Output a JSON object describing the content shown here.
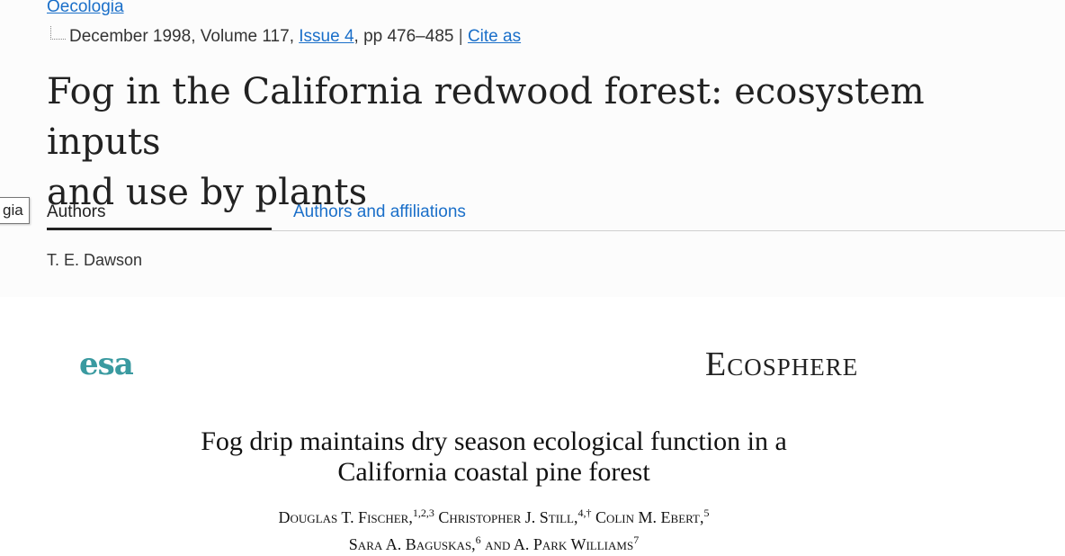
{
  "springer": {
    "journal": "Oecologia",
    "meta": {
      "date_volume": "December 1998, Volume 117, ",
      "issue_link": "Issue 4",
      "pages": ", pp 476–485 ",
      "separator": "|",
      "cite_link": "Cite as"
    },
    "title_line1": "Fog in the California redwood forest: ecosystem inputs",
    "title_line2": "and use by plants",
    "tooltip": "gia",
    "tabs": {
      "authors": "Authors",
      "affiliations": "Authors and affiliations"
    },
    "author": "T. E. Dawson"
  },
  "ecosphere": {
    "logo": "esa",
    "journal": "Ecosphere",
    "title_line1": "Fog drip maintains dry season ecological function in a",
    "title_line2": "California coastal pine forest",
    "authors": [
      {
        "name": "Douglas T. Fischer,",
        "sup": "1,2,3"
      },
      {
        "name": " Christopher J. Still,",
        "sup": "4,†"
      },
      {
        "name": " Colin M. Ebert,",
        "sup": "5"
      },
      {
        "name": "Sara A. Baguskas,",
        "sup": "6"
      },
      {
        "name": " and A. Park Williams",
        "sup": "7"
      }
    ]
  },
  "colors": {
    "link": "#1a6fc9",
    "esa_teal": "#3a9aa0",
    "panel_bg": "#fcfcfc"
  }
}
